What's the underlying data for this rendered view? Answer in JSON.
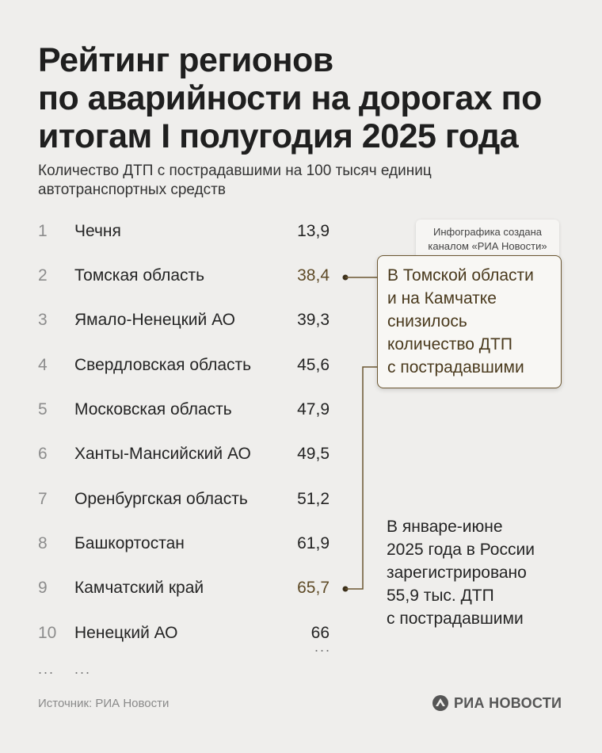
{
  "title": {
    "line1": "Рейтинг регионов",
    "line2": "по аварийности на дорогах по",
    "line3": "итогам I полугодия 2025 года"
  },
  "subtitle": {
    "line1": "Количество ДТП с пострадавшими на 100 тысяч единиц",
    "line2": "автотранспортных средств"
  },
  "rows": [
    {
      "rank": "1",
      "region": "Чечня",
      "value": "13,9"
    },
    {
      "rank": "2",
      "region": "Томская область",
      "value": "38,4"
    },
    {
      "rank": "3",
      "region": "Ямало-Ненецкий АО",
      "value": "39,3"
    },
    {
      "rank": "4",
      "region": "Свердловская область",
      "value": "45,6"
    },
    {
      "rank": "5",
      "region": "Московская область",
      "value": "47,9"
    },
    {
      "rank": "6",
      "region": "Ханты-Мансийский АО",
      "value": "49,5"
    },
    {
      "rank": "7",
      "region": "Оренбургская область",
      "value": "51,2"
    },
    {
      "rank": "8",
      "region": "Башкортостан",
      "value": "61,9"
    },
    {
      "rank": "9",
      "region": "Камчатский край",
      "value": "65,7"
    },
    {
      "rank": "10",
      "region": "Ненецкий АО",
      "value": "66"
    }
  ],
  "ellipsis": "...",
  "credit_tag": {
    "line1": "Инфографика создана",
    "line2": "каналом «РИА Новости»"
  },
  "callout": {
    "line1": "В Томской области",
    "line2": "и на Камчатке",
    "line3": "снизилось",
    "line4": "количество ДТП",
    "line5": "с пострадавшими"
  },
  "note": {
    "line1": "В январе-июне",
    "line2": "2025 года в России",
    "line3": "зарегистрировано",
    "line4": "55,9 тыс. ДТП",
    "line5": "с пострадавшими"
  },
  "source": "Источник: РИА Новости",
  "brand": "РИА НОВОСТИ",
  "colors": {
    "background": "#efeeec",
    "accent": "#6b5631",
    "text": "#242424",
    "muted": "#8c8c8c"
  }
}
